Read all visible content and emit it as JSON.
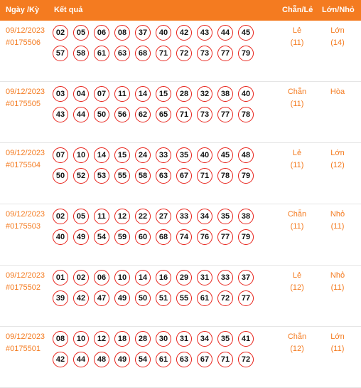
{
  "header": {
    "date_label": "Ngày /Kỳ",
    "result_label": "Kết quả",
    "parity_label": "Chẵn/Lẻ",
    "size_label": "Lớn/Nhỏ"
  },
  "rows": [
    {
      "date": "09/12/2023",
      "draw_id": "#0175506",
      "numbers": [
        "02",
        "05",
        "06",
        "08",
        "37",
        "40",
        "42",
        "43",
        "44",
        "45",
        "57",
        "58",
        "61",
        "63",
        "68",
        "71",
        "72",
        "73",
        "77",
        "79"
      ],
      "parity": "Lẻ",
      "parity_count": "(11)",
      "size": "Lớn",
      "size_count": "(14)"
    },
    {
      "date": "09/12/2023",
      "draw_id": "#0175505",
      "numbers": [
        "03",
        "04",
        "07",
        "11",
        "14",
        "15",
        "28",
        "32",
        "38",
        "40",
        "43",
        "44",
        "50",
        "56",
        "62",
        "65",
        "71",
        "73",
        "77",
        "78"
      ],
      "parity": "Chẵn",
      "parity_count": "(11)",
      "size": "Hòa",
      "size_count": ""
    },
    {
      "date": "09/12/2023",
      "draw_id": "#0175504",
      "numbers": [
        "07",
        "10",
        "14",
        "15",
        "24",
        "33",
        "35",
        "40",
        "45",
        "48",
        "50",
        "52",
        "53",
        "55",
        "58",
        "63",
        "67",
        "71",
        "78",
        "79"
      ],
      "parity": "Lẻ",
      "parity_count": "(11)",
      "size": "Lớn",
      "size_count": "(12)"
    },
    {
      "date": "09/12/2023",
      "draw_id": "#0175503",
      "numbers": [
        "02",
        "05",
        "11",
        "12",
        "22",
        "27",
        "33",
        "34",
        "35",
        "38",
        "40",
        "49",
        "54",
        "59",
        "60",
        "68",
        "74",
        "76",
        "77",
        "79"
      ],
      "parity": "Chẵn",
      "parity_count": "(11)",
      "size": "Nhỏ",
      "size_count": "(11)"
    },
    {
      "date": "09/12/2023",
      "draw_id": "#0175502",
      "numbers": [
        "01",
        "02",
        "06",
        "10",
        "14",
        "16",
        "29",
        "31",
        "33",
        "37",
        "39",
        "42",
        "47",
        "49",
        "50",
        "51",
        "55",
        "61",
        "72",
        "77"
      ],
      "parity": "Lẻ",
      "parity_count": "(12)",
      "size": "Nhỏ",
      "size_count": "(11)"
    },
    {
      "date": "09/12/2023",
      "draw_id": "#0175501",
      "numbers": [
        "08",
        "10",
        "12",
        "18",
        "28",
        "30",
        "31",
        "34",
        "35",
        "41",
        "42",
        "44",
        "48",
        "49",
        "54",
        "61",
        "63",
        "67",
        "71",
        "72"
      ],
      "parity": "Chẵn",
      "parity_count": "(12)",
      "size": "Lớn",
      "size_count": "(11)"
    }
  ],
  "colors": {
    "accent": "#f47b20",
    "ball_border": "#e8221a"
  },
  "icons": {}
}
